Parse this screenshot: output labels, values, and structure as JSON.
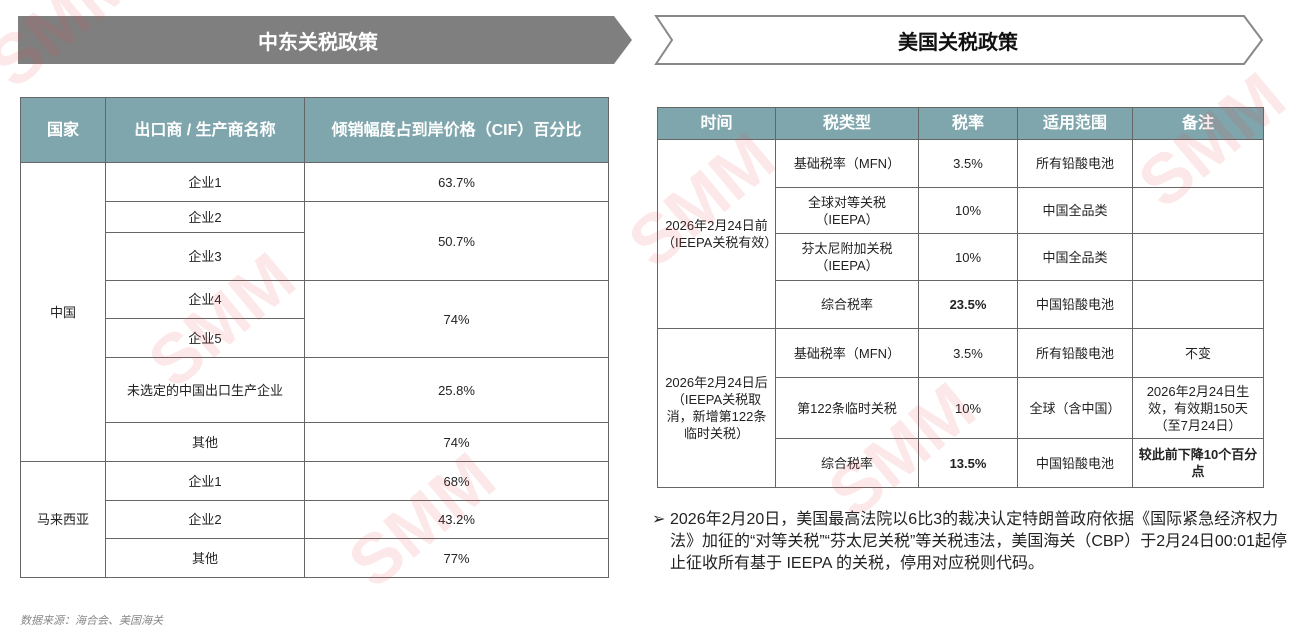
{
  "left_banner": "中东关税政策",
  "right_banner": "美国关税政策",
  "left_table": {
    "headers": [
      "国家",
      "出口商 / 生产商名称",
      "倾销幅度占到岸价格（CIF）百分比"
    ],
    "groups": [
      {
        "country": "中国",
        "entries": [
          {
            "companies": [
              "企业1"
            ],
            "ratio": "63.7%"
          },
          {
            "companies": [
              "企业2",
              "企业3"
            ],
            "ratio": "50.7%"
          },
          {
            "companies": [
              "企业4",
              "企业5"
            ],
            "ratio": "74%"
          },
          {
            "companies": [
              "未选定的中国出口生产企业"
            ],
            "ratio": "25.8%"
          },
          {
            "companies": [
              "其他"
            ],
            "ratio": "74%"
          }
        ]
      },
      {
        "country": "马来西亚",
        "entries": [
          {
            "companies": [
              "企业1"
            ],
            "ratio": "68%"
          },
          {
            "companies": [
              "企业2"
            ],
            "ratio": "43.2%"
          },
          {
            "companies": [
              "其他"
            ],
            "ratio": "77%"
          }
        ]
      }
    ]
  },
  "right_table": {
    "headers": [
      "时间",
      "税类型",
      "税率",
      "适用范围",
      "备注"
    ],
    "groups": [
      {
        "time": "2026年2月24日前（IEEPA关税有效）",
        "rows": [
          {
            "type": "基础税率（MFN）",
            "rate": "3.5%",
            "scope": "所有铅酸电池"
          },
          {
            "type": "全球对等关税（IEEPA）",
            "rate": "10%",
            "scope": "中国全品类"
          },
          {
            "type": "芬太尼附加关税（IEEPA）",
            "rate": "10%",
            "scope": "中国全品类"
          },
          {
            "type": "综合税率",
            "rate": "23.5%",
            "scope": "中国铅酸电池",
            "highlight": true
          }
        ]
      },
      {
        "time": "2026年2月24日后（IEEPA关税取消，新增第122条临时关税）",
        "rows": [
          {
            "type": "基础税率（MFN）",
            "rate": "3.5%",
            "scope": "所有铅酸电池",
            "note": "不变"
          },
          {
            "type": "第122条临时关税",
            "rate": "10%",
            "scope": "全球（含中国）",
            "note": "2026年2月24日生效，有效期150天（至7月24日）"
          },
          {
            "type": "综合税率",
            "rate": "13.5%",
            "scope": "中国铅酸电池",
            "note": "较此前下降10个百分点",
            "highlight": true
          }
        ]
      }
    ]
  },
  "bullet": {
    "marker": "➢",
    "text": "2026年2月20日，美国最高法院以6比3的裁决认定特朗普政府依据《国际紧急经济权力法》加征的“对等关税”“芬太尼关税”等关税违法，美国海关（CBP）于2月24日00:01起停止征收所有基于 IEEPA 的关税，停用对应税则代码。"
  },
  "source": "数据来源：海合会、美国海关",
  "watermark": "SMM"
}
